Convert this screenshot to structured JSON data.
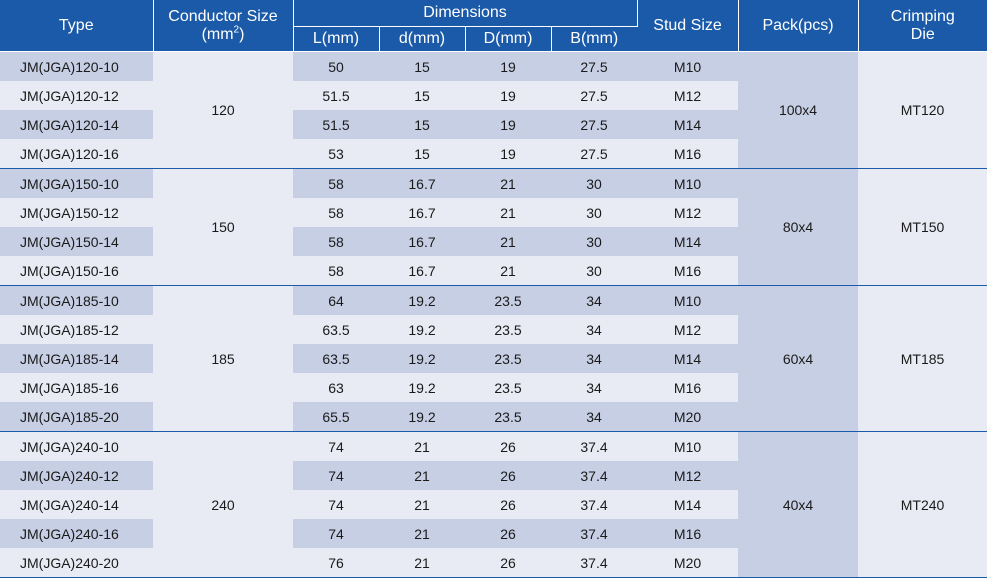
{
  "header": {
    "type": "Type",
    "conductor_size": "Conductor Size",
    "conductor_unit_prefix": "(mm",
    "conductor_unit_sup": "2",
    "conductor_unit_suffix": ")",
    "dimensions": "Dimensions",
    "l": "L(mm)",
    "d": "d(mm)",
    "D": "D(mm)",
    "b": "B(mm)",
    "stud_size": "Stud Size",
    "pack": "Pack(pcs)",
    "crimping": "Crimping",
    "die": "Die"
  },
  "groups": [
    {
      "conductor": "120",
      "pack": "100x4",
      "die": "MT120",
      "rows": [
        {
          "type": "JM(JGA)120-10",
          "l": "50",
          "d": "15",
          "D": "19",
          "b": "27.5",
          "stud": "M10"
        },
        {
          "type": "JM(JGA)120-12",
          "l": "51.5",
          "d": "15",
          "D": "19",
          "b": "27.5",
          "stud": "M12"
        },
        {
          "type": "JM(JGA)120-14",
          "l": "51.5",
          "d": "15",
          "D": "19",
          "b": "27.5",
          "stud": "M14"
        },
        {
          "type": "JM(JGA)120-16",
          "l": "53",
          "d": "15",
          "D": "19",
          "b": "27.5",
          "stud": "M16"
        }
      ]
    },
    {
      "conductor": "150",
      "pack": "80x4",
      "die": "MT150",
      "rows": [
        {
          "type": "JM(JGA)150-10",
          "l": "58",
          "d": "16.7",
          "D": "21",
          "b": "30",
          "stud": "M10"
        },
        {
          "type": "JM(JGA)150-12",
          "l": "58",
          "d": "16.7",
          "D": "21",
          "b": "30",
          "stud": "M12"
        },
        {
          "type": "JM(JGA)150-14",
          "l": "58",
          "d": "16.7",
          "D": "21",
          "b": "30",
          "stud": "M14"
        },
        {
          "type": "JM(JGA)150-16",
          "l": "58",
          "d": "16.7",
          "D": "21",
          "b": "30",
          "stud": "M16"
        }
      ]
    },
    {
      "conductor": "185",
      "pack": "60x4",
      "die": "MT185",
      "rows": [
        {
          "type": "JM(JGA)185-10",
          "l": "64",
          "d": "19.2",
          "D": "23.5",
          "b": "34",
          "stud": "M10"
        },
        {
          "type": "JM(JGA)185-12",
          "l": "63.5",
          "d": "19.2",
          "D": "23.5",
          "b": "34",
          "stud": "M12"
        },
        {
          "type": "JM(JGA)185-14",
          "l": "63.5",
          "d": "19.2",
          "D": "23.5",
          "b": "34",
          "stud": "M14"
        },
        {
          "type": "JM(JGA)185-16",
          "l": "63",
          "d": "19.2",
          "D": "23.5",
          "b": "34",
          "stud": "M16"
        },
        {
          "type": "JM(JGA)185-20",
          "l": "65.5",
          "d": "19.2",
          "D": "23.5",
          "b": "34",
          "stud": "M20"
        }
      ]
    },
    {
      "conductor": "240",
      "pack": "40x4",
      "die": "MT240",
      "rows": [
        {
          "type": "JM(JGA)240-10",
          "l": "74",
          "d": "21",
          "D": "26",
          "b": "37.4",
          "stud": "M10"
        },
        {
          "type": "JM(JGA)240-12",
          "l": "74",
          "d": "21",
          "D": "26",
          "b": "37.4",
          "stud": "M12"
        },
        {
          "type": "JM(JGA)240-14",
          "l": "74",
          "d": "21",
          "D": "26",
          "b": "37.4",
          "stud": "M14"
        },
        {
          "type": "JM(JGA)240-16",
          "l": "74",
          "d": "21",
          "D": "26",
          "b": "37.4",
          "stud": "M16"
        },
        {
          "type": "JM(JGA)240-20",
          "l": "76",
          "d": "21",
          "D": "26",
          "b": "37.4",
          "stud": "M20"
        }
      ]
    }
  ]
}
